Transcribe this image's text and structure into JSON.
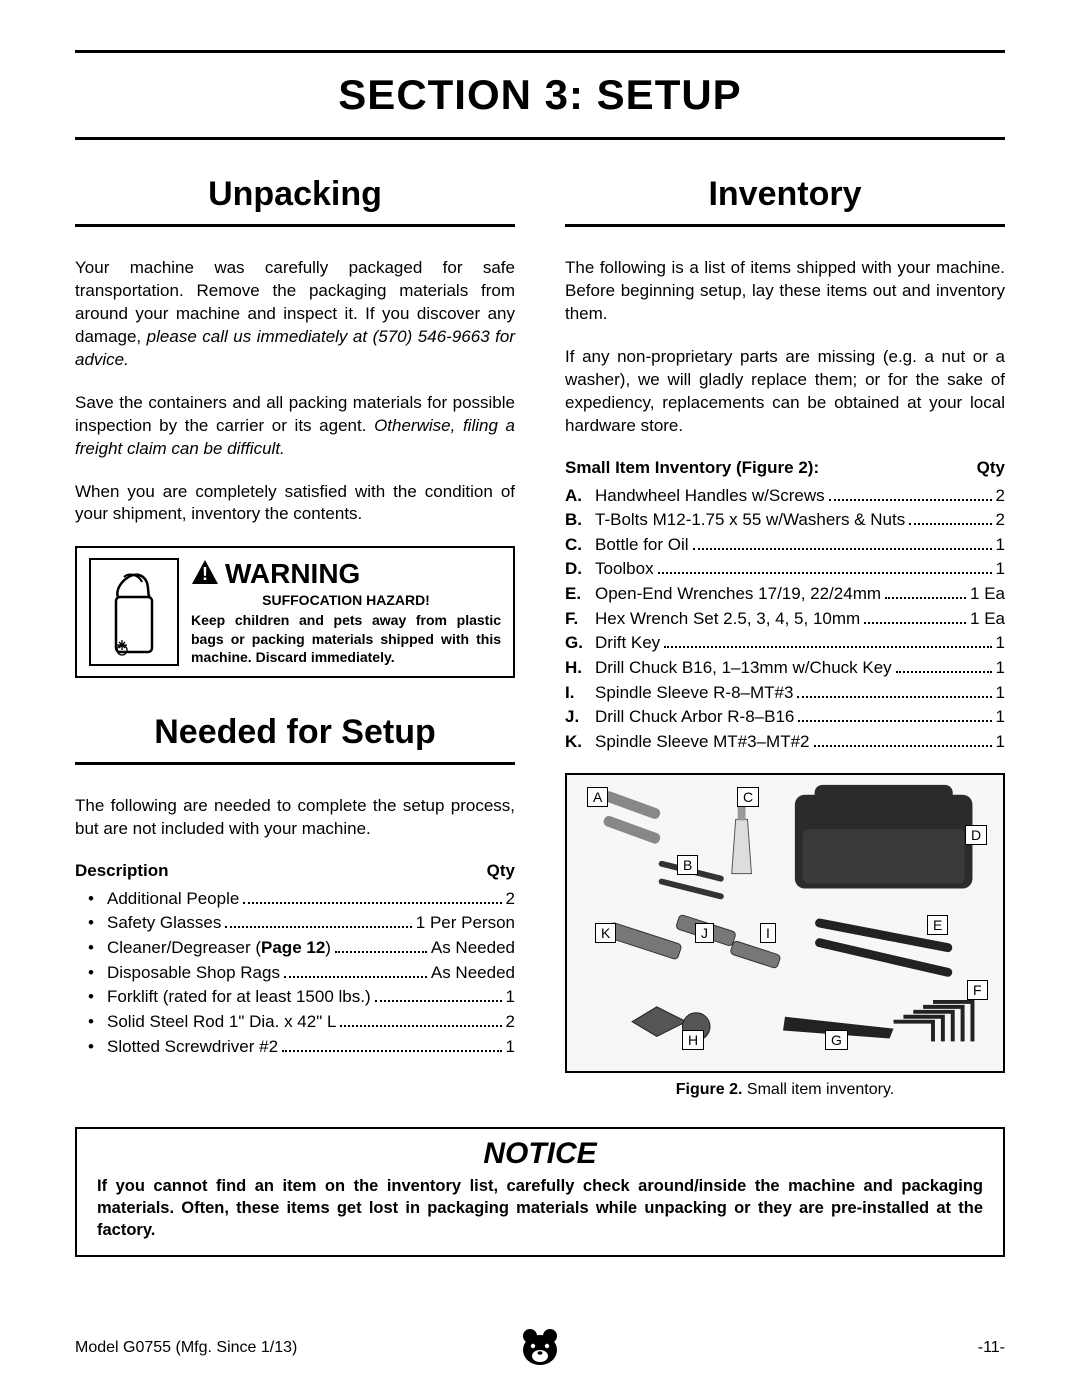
{
  "section_title": "SECTION 3: SETUP",
  "unpacking": {
    "heading": "Unpacking",
    "p1a": "Your machine was carefully packaged for safe transportation. Remove the packaging materials from around your machine and inspect it. If you discover any damage, ",
    "p1b": "please call us immediately at (570) 546-9663 for advice.",
    "p2a": "Save the containers and all packing materials for possible inspection by the carrier or its agent. ",
    "p2b": "Otherwise, filing a freight claim can be difficult.",
    "p3": "When you are completely satisfied with the condition of your shipment, inventory the contents."
  },
  "warning": {
    "head": "WARNING",
    "sub": "SUFFOCATION HAZARD!",
    "body": "Keep children and pets away from plastic bags or packing materials shipped with this machine. Discard immediately."
  },
  "needed": {
    "heading": "Needed for Setup",
    "intro": "The following are needed to complete the setup process, but are not included with your machine.",
    "col_desc": "Description",
    "col_qty": "Qty",
    "items": [
      {
        "desc": "Additional People",
        "qty": "2"
      },
      {
        "desc": "Safety Glasses",
        "qty": "1 Per Person"
      },
      {
        "desc_pre": "Cleaner/Degreaser (",
        "desc_bold": "Page 12",
        "desc_post": ")",
        "qty": "As Needed"
      },
      {
        "desc": "Disposable Shop Rags",
        "qty": "As Needed"
      },
      {
        "desc": "Forklift (rated for at least 1500 lbs.)",
        "qty": "1"
      },
      {
        "desc": "Solid Steel Rod 1\" Dia. x 42\" L",
        "qty": "2"
      },
      {
        "desc": "Slotted Screwdriver #2",
        "qty": "1"
      }
    ]
  },
  "inventory": {
    "heading": "Inventory",
    "p1": "The following is a list of items shipped with your machine. Before beginning setup, lay these items out and inventory them.",
    "p2": "If any non-proprietary parts are missing (e.g. a nut or a washer), we will gladly replace them; or for the sake of expediency, replacements can be obtained at your local hardware store.",
    "list_head": "Small Item Inventory (Figure 2):",
    "col_qty": "Qty",
    "items": [
      {
        "l": "A.",
        "desc": "Handwheel Handles w/Screws",
        "qty": "2"
      },
      {
        "l": "B.",
        "desc": "T-Bolts M12-1.75 x 55 w/Washers & Nuts",
        "qty": "2"
      },
      {
        "l": "C.",
        "desc": "Bottle for Oil",
        "qty": "1"
      },
      {
        "l": "D.",
        "desc": "Toolbox",
        "qty": "1"
      },
      {
        "l": "E.",
        "desc": "Open-End Wrenches 17/19, 22/24mm",
        "qty": "1 Ea"
      },
      {
        "l": "F.",
        "desc": "Hex Wrench Set 2.5, 3, 4, 5, 10mm",
        "qty": "1 Ea"
      },
      {
        "l": "G.",
        "desc": "Drift Key",
        "qty": "1"
      },
      {
        "l": "H.",
        "desc": "Drill Chuck B16, 1–13mm w/Chuck Key",
        "qty": "1"
      },
      {
        "l": "I.",
        "desc": "Spindle Sleeve R-8–MT#3",
        "qty": "1"
      },
      {
        "l": "J.",
        "desc": "Drill Chuck Arbor R-8–B16",
        "qty": "1"
      },
      {
        "l": "K.",
        "desc": "Spindle Sleeve MT#3–MT#2",
        "qty": "1"
      }
    ],
    "fig_labels": [
      "A",
      "B",
      "C",
      "D",
      "E",
      "F",
      "G",
      "H",
      "I",
      "J",
      "K"
    ],
    "fig_caption_bold": "Figure 2.",
    "fig_caption_rest": " Small item inventory."
  },
  "notice": {
    "head": "NOTICE",
    "body": "If you cannot find an item on the inventory list, carefully check around/inside the machine and packaging materials. Often, these items get lost in packaging materials while unpacking or they are pre-installed at the factory."
  },
  "footer": {
    "left": "Model G0755 (Mfg. Since 1/13)",
    "right": "-11-"
  },
  "colors": {
    "text": "#000000",
    "bg": "#ffffff",
    "figbg": "#f7f7f7"
  }
}
